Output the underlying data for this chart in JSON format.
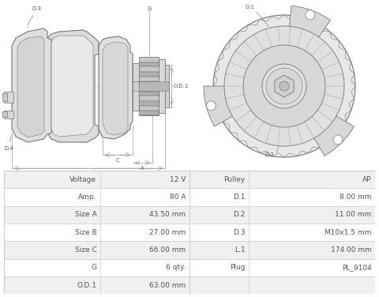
{
  "bg_color": "#ffffff",
  "table_border_color": "#cccccc",
  "table_row_bg_odd": "#f0f0f0",
  "table_row_bg_even": "#ffffff",
  "table_data": [
    [
      "Voltage",
      "12 V",
      "Pulley",
      "AP"
    ],
    [
      "Amp.",
      "80 A",
      "D.1",
      "8.00 mm"
    ],
    [
      "Size A",
      "43.50 mm",
      "D.2",
      "11.00 mm"
    ],
    [
      "Size B",
      "27.00 mm",
      "D.3",
      "M10x1.5 mm"
    ],
    [
      "Size C",
      "66.00 mm",
      "L.1",
      "174.00 mm"
    ],
    [
      "G",
      "6 qty.",
      "Plug",
      "PL_9104"
    ],
    [
      "O.D.1",
      "63.00 mm",
      "",
      ""
    ]
  ],
  "line_color": "#999999",
  "line_color_dark": "#777777",
  "fill_light": "#e8e8e8",
  "fill_mid": "#d0d0d0",
  "text_color": "#555555",
  "table_text_color": "#555555"
}
